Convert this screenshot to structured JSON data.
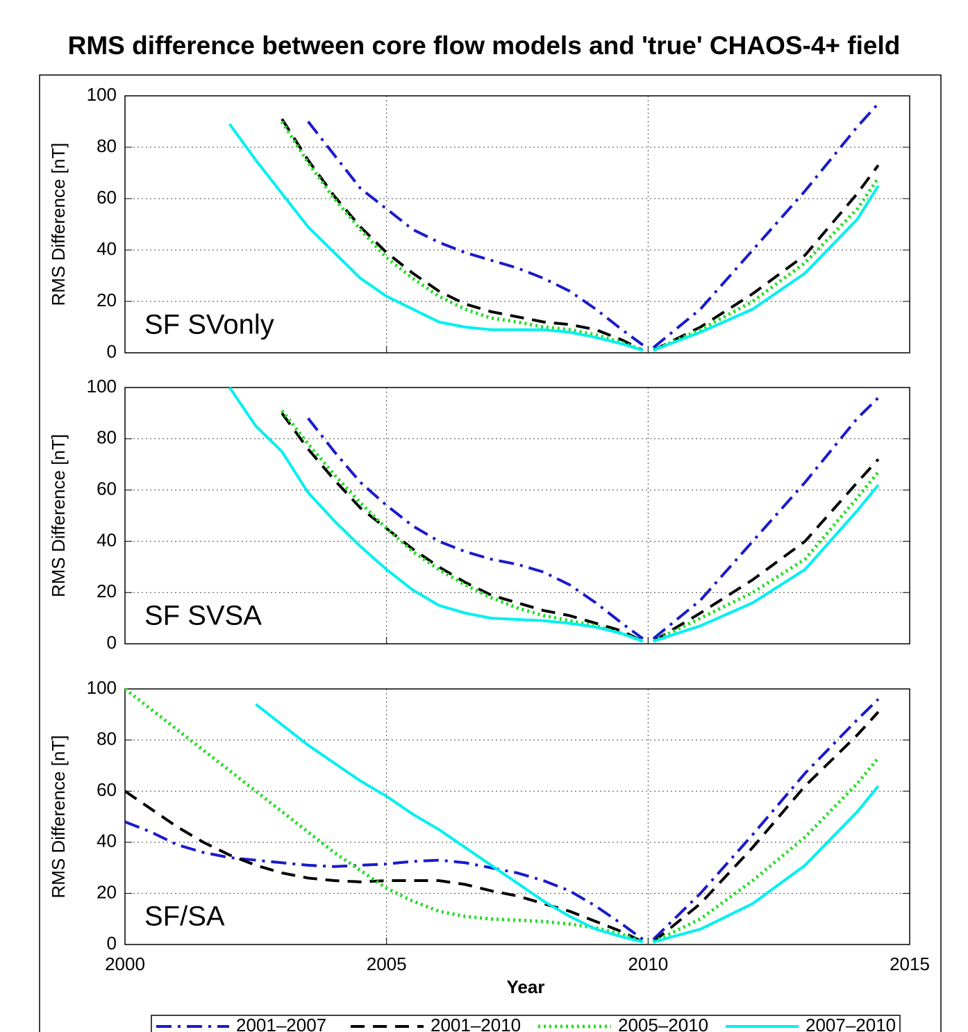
{
  "title": "RMS difference between core flow models and 'true' CHAOS-4+ field",
  "chart_data": [
    {
      "type": "line",
      "annotation": "SF SVonly",
      "ylabel": "RMS Difference [nT]",
      "xlim": [
        2000,
        2015
      ],
      "xticks": [
        2000,
        2005,
        2010,
        2015
      ],
      "show_xticklabels": false,
      "ylim": [
        0,
        100
      ],
      "yticks": [
        0,
        20,
        40,
        60,
        80,
        100
      ],
      "grid": true,
      "x": [
        2000,
        2000.5,
        2001,
        2001.5,
        2002,
        2002.5,
        2003,
        2003.5,
        2004,
        2004.5,
        2005,
        2005.5,
        2006,
        2006.5,
        2007,
        2007.5,
        2008,
        2008.5,
        2009,
        2009.5,
        2009.9,
        2010,
        2010.1,
        2011,
        2012,
        2013,
        2014,
        2014.4
      ],
      "series": [
        {
          "name": "2001–2007",
          "color": "#1a1acc",
          "style": "dashdot",
          "values": [
            null,
            null,
            null,
            null,
            null,
            null,
            null,
            90,
            77,
            64,
            56,
            48,
            43,
            39,
            36,
            33,
            29,
            24,
            17,
            9,
            3,
            null,
            2,
            17,
            40,
            63,
            88,
            97
          ]
        },
        {
          "name": "2001–2010",
          "color": "#000000",
          "style": "dashed",
          "values": [
            null,
            null,
            null,
            null,
            null,
            null,
            91,
            75,
            61,
            49,
            39,
            31,
            24,
            19,
            16,
            14,
            12,
            11,
            9,
            5,
            1,
            null,
            1,
            10,
            23,
            38,
            62,
            73
          ]
        },
        {
          "name": "2005–2010",
          "color": "#22dd22",
          "style": "dotted",
          "values": [
            null,
            null,
            null,
            null,
            null,
            null,
            90,
            74,
            60,
            48,
            37,
            29,
            22,
            17,
            13.5,
            12,
            10,
            9,
            7,
            4,
            1,
            null,
            1,
            9,
            20,
            35,
            56,
            68
          ]
        },
        {
          "name": "2007–2010",
          "color": "#00f0f0",
          "style": "solid",
          "values": [
            null,
            null,
            null,
            null,
            89,
            75,
            62,
            49,
            39,
            29,
            22,
            17,
            12,
            10,
            9,
            9,
            9,
            8,
            6,
            3.5,
            1,
            null,
            1,
            8,
            17,
            31,
            52,
            65
          ]
        }
      ]
    },
    {
      "type": "line",
      "annotation": "SF SVSA",
      "ylabel": "RMS Difference [nT]",
      "xlim": [
        2000,
        2015
      ],
      "xticks": [
        2000,
        2005,
        2010,
        2015
      ],
      "show_xticklabels": false,
      "ylim": [
        0,
        100
      ],
      "yticks": [
        0,
        20,
        40,
        60,
        80,
        100
      ],
      "grid": true,
      "x": [
        2000,
        2000.5,
        2001,
        2001.5,
        2002,
        2002.5,
        2003,
        2003.5,
        2004,
        2004.5,
        2005,
        2005.5,
        2006,
        2006.5,
        2007,
        2007.5,
        2008,
        2008.5,
        2009,
        2009.5,
        2009.9,
        2010,
        2010.1,
        2011,
        2012,
        2013,
        2014,
        2014.4
      ],
      "series": [
        {
          "name": "2001–2007",
          "color": "#1a1acc",
          "style": "dashdot",
          "values": [
            null,
            null,
            null,
            null,
            null,
            null,
            null,
            88,
            75,
            63,
            54,
            46,
            40,
            36,
            33,
            31,
            28,
            23,
            16,
            8,
            2,
            null,
            2,
            17,
            40,
            63,
            88,
            96
          ]
        },
        {
          "name": "2001–2010",
          "color": "#000000",
          "style": "dashed",
          "values": [
            null,
            null,
            null,
            null,
            null,
            null,
            90,
            76,
            64,
            53,
            45,
            37,
            30,
            24,
            19,
            16,
            13,
            11,
            8,
            5,
            1,
            null,
            1,
            12,
            25,
            40,
            63,
            72
          ]
        },
        {
          "name": "2005–2010",
          "color": "#22dd22",
          "style": "dotted",
          "values": [
            null,
            null,
            null,
            null,
            null,
            null,
            91,
            78,
            66,
            55,
            45,
            36,
            29,
            23,
            18,
            14,
            11,
            9,
            7,
            4,
            1,
            null,
            1,
            10,
            20,
            33,
            57,
            67
          ]
        },
        {
          "name": "2007–2010",
          "color": "#00f0f0",
          "style": "solid",
          "values": [
            null,
            null,
            null,
            null,
            100,
            85,
            75,
            59,
            48,
            38,
            29,
            21,
            15,
            12,
            10,
            9.5,
            9,
            8,
            6.5,
            4,
            1,
            null,
            1,
            7,
            16,
            29,
            52,
            62
          ]
        }
      ]
    },
    {
      "type": "line",
      "annotation": "SF/SA",
      "ylabel": "RMS Difference [nT]",
      "xlabel": "Year",
      "xlim": [
        2000,
        2015
      ],
      "xticks": [
        2000,
        2005,
        2010,
        2015
      ],
      "show_xticklabels": true,
      "ylim": [
        0,
        100
      ],
      "yticks": [
        0,
        20,
        40,
        60,
        80,
        100
      ],
      "grid": true,
      "x": [
        2000,
        2000.5,
        2001,
        2001.5,
        2002,
        2002.5,
        2003,
        2003.5,
        2004,
        2004.5,
        2005,
        2005.5,
        2006,
        2006.5,
        2007,
        2007.5,
        2008,
        2008.5,
        2009,
        2009.5,
        2009.9,
        2010,
        2010.1,
        2011,
        2012,
        2013,
        2014,
        2014.4
      ],
      "series": [
        {
          "name": "2001–2007",
          "color": "#1a1acc",
          "style": "dashdot",
          "values": [
            48,
            44,
            39,
            36,
            34,
            33,
            32,
            31,
            30.5,
            31,
            31.5,
            32.5,
            33,
            32,
            30,
            28,
            25,
            21,
            15,
            8,
            2,
            null,
            2,
            20,
            43,
            67,
            88,
            96
          ]
        },
        {
          "name": "2001–2010",
          "color": "#000000",
          "style": "dashed",
          "values": [
            60,
            53,
            46,
            40,
            35,
            31,
            28,
            26,
            25,
            24.5,
            25,
            25,
            25,
            23.5,
            21,
            19,
            16,
            13,
            9,
            5,
            1,
            null,
            1,
            16,
            38,
            62,
            82,
            91
          ]
        },
        {
          "name": "2005–2010",
          "color": "#22dd22",
          "style": "dotted",
          "values": [
            100,
            92,
            84,
            76,
            68,
            60,
            52,
            44,
            36,
            29,
            22,
            17,
            13,
            11,
            10,
            9.5,
            9,
            8,
            6.5,
            4,
            1,
            null,
            1,
            10,
            25,
            42,
            63,
            73
          ]
        },
        {
          "name": "2007–2010",
          "color": "#00f0f0",
          "style": "solid",
          "values": [
            null,
            null,
            null,
            null,
            null,
            94,
            86,
            78,
            71,
            64,
            58,
            51,
            45,
            38,
            31,
            24,
            17,
            11,
            6,
            3,
            1,
            null,
            1,
            6,
            16,
            31,
            52,
            62
          ]
        }
      ]
    }
  ]
}
